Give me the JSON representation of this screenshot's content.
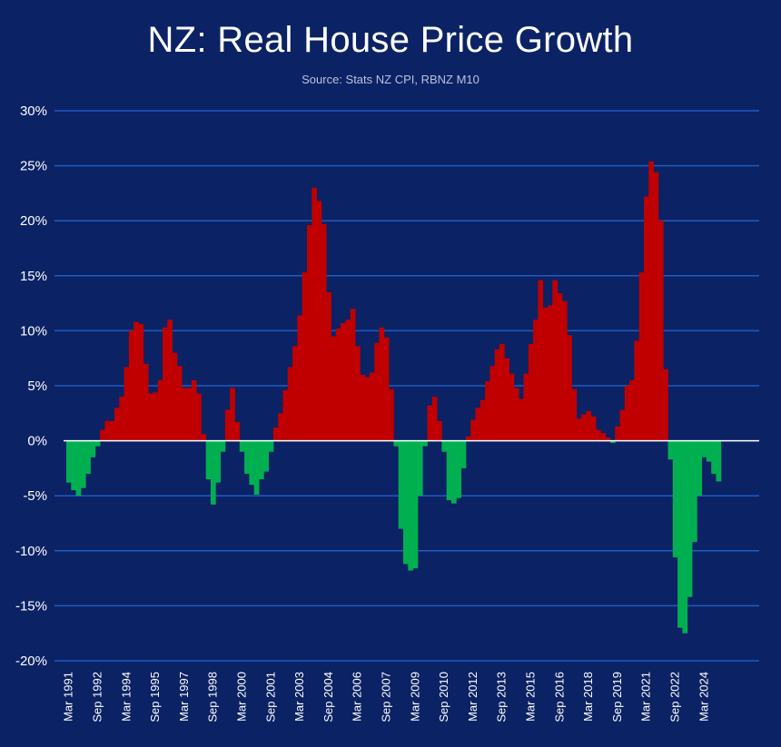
{
  "chart_data": {
    "type": "bar",
    "title": "NZ: Real House Price Growth",
    "subtitle": "Source: Stats NZ CPI, RBNZ M10",
    "xlabel": "",
    "ylabel": "",
    "ylim": [
      -20,
      30
    ],
    "yticks": [
      "30%",
      "25%",
      "20%",
      "15%",
      "10%",
      "5%",
      "0%",
      "-5%",
      "-10%",
      "-15%",
      "-20%"
    ],
    "xticks": [
      {
        "label": "Mar 1991",
        "index": 0
      },
      {
        "label": "Sep 1992",
        "index": 6
      },
      {
        "label": "Mar 1994",
        "index": 12
      },
      {
        "label": "Sep 1995",
        "index": 18
      },
      {
        "label": "Mar 1997",
        "index": 24
      },
      {
        "label": "Sep 1998",
        "index": 30
      },
      {
        "label": "Mar 2000",
        "index": 36
      },
      {
        "label": "Sep 2001",
        "index": 42
      },
      {
        "label": "Mar 2003",
        "index": 48
      },
      {
        "label": "Sep 2004",
        "index": 54
      },
      {
        "label": "Mar 2006",
        "index": 60
      },
      {
        "label": "Sep 2007",
        "index": 66
      },
      {
        "label": "Mar 2009",
        "index": 72
      },
      {
        "label": "Sep 2010",
        "index": 78
      },
      {
        "label": "Mar 2012",
        "index": 84
      },
      {
        "label": "Sep 2013",
        "index": 90
      },
      {
        "label": "Mar 2015",
        "index": 96
      },
      {
        "label": "Sep 2016",
        "index": 102
      },
      {
        "label": "Mar 2018",
        "index": 108
      },
      {
        "label": "Sep 2019",
        "index": 114
      },
      {
        "label": "Mar 2021",
        "index": 120
      },
      {
        "label": "Sep 2022",
        "index": 126
      },
      {
        "label": "Mar 2024",
        "index": 132
      }
    ],
    "colors": {
      "positive": "#c00000",
      "negative": "#00b050",
      "grid": "#1f5bbf",
      "zero": "#ffffff",
      "background": "#0b2265"
    },
    "grid": true,
    "legend": "none",
    "values": [
      -3.8,
      -4.5,
      -5.0,
      -4.3,
      -3.0,
      -1.5,
      -0.5,
      1.0,
      1.8,
      1.8,
      3.0,
      4.0,
      6.7,
      10.0,
      10.8,
      10.6,
      7.0,
      4.3,
      4.4,
      5.5,
      10.3,
      11.0,
      8.0,
      6.8,
      4.8,
      4.8,
      5.5,
      4.3,
      0.6,
      -3.5,
      -5.8,
      -3.8,
      -1.0,
      2.8,
      4.8,
      1.7,
      -1.0,
      -3.0,
      -4.0,
      -4.9,
      -3.5,
      -2.8,
      -1.0,
      1.2,
      2.5,
      4.6,
      6.7,
      8.6,
      11.4,
      15.3,
      19.6,
      23.0,
      21.8,
      19.7,
      13.5,
      9.5,
      10.2,
      10.7,
      11.0,
      12.0,
      8.6,
      6.0,
      5.8,
      6.2,
      8.9,
      10.3,
      9.4,
      4.7,
      -0.5,
      -8.0,
      -11.2,
      -11.8,
      -11.6,
      -5.0,
      -0.5,
      3.2,
      4.0,
      1.8,
      -1.0,
      -5.4,
      -5.7,
      -5.2,
      -2.5,
      0.4,
      1.9,
      3.0,
      3.7,
      5.4,
      6.8,
      8.3,
      8.8,
      7.5,
      6.1,
      4.8,
      3.8,
      6.1,
      8.8,
      11.0,
      14.6,
      12.1,
      12.3,
      14.6,
      13.4,
      12.7,
      9.6,
      4.7,
      2.0,
      2.4,
      2.7,
      2.2,
      1.0,
      0.7,
      0.3,
      -0.2,
      1.3,
      2.8,
      5.0,
      5.5,
      9.1,
      15.3,
      22.2,
      25.4,
      24.4,
      20.0,
      6.5,
      -1.7,
      -10.6,
      -17.0,
      -17.5,
      -14.2,
      -9.2,
      -5.0,
      -1.5,
      -1.9,
      -3.0,
      -3.7
    ]
  }
}
